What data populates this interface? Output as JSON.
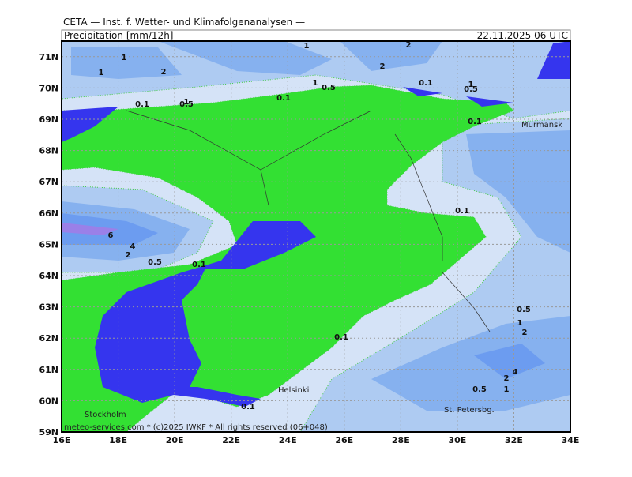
{
  "header": {
    "institute": "CETA — Inst. f. Wetter- und Klimafolgenanalysen —",
    "title": "Precipitation [mm/12h]",
    "datetime": "22.11.2025 06 UTC"
  },
  "map": {
    "lon_labels": [
      "16E",
      "18E",
      "20E",
      "22E",
      "24E",
      "26E",
      "28E",
      "30E",
      "32E",
      "34E"
    ],
    "lat_labels": [
      "59N",
      "60N",
      "61N",
      "62N",
      "63N",
      "64N",
      "65N",
      "66N",
      "67N",
      "68N",
      "69N",
      "70N",
      "71N"
    ],
    "cities": [
      "Murmansk",
      "Helsinki",
      "Stockholm",
      "St. Petersbg."
    ],
    "contour_labels": [
      "1",
      "1",
      "2",
      "1",
      "2",
      "2",
      "1",
      "0.5",
      "0.1",
      "1",
      "0.5",
      "0.1",
      "1",
      "0.5",
      "0.1",
      "0.1",
      "0.1",
      "6",
      "4",
      "2",
      "0.5",
      "0.1",
      "0.1",
      "0.5",
      "1",
      "2",
      "4",
      "2",
      "1",
      "0.5",
      "0.1"
    ]
  },
  "footer": "meteo-services.com * (c)2025 IWKF * All rights reserved (06+048)"
}
